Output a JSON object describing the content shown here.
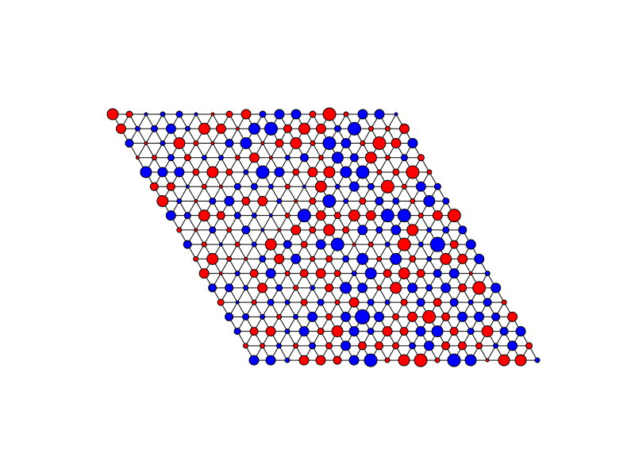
{
  "chart_data": {
    "type": "lattice",
    "colors": {
      "positive": "#ff0000",
      "negative": "#0000ff"
    },
    "values": [
      [
        7,
        4,
        -2,
        -3,
        -4,
        -2,
        2,
        4,
        6,
        -4,
        -6,
        -6,
        4,
        8,
        3,
        -6,
        -6,
        -2
      ],
      [
        6,
        -3,
        -4,
        -6,
        -3,
        7,
        6,
        2,
        -7,
        -8,
        5,
        7,
        6,
        -4,
        -8,
        3,
        3,
        6
      ],
      [
        -5,
        2,
        -3,
        7,
        3,
        2,
        -5,
        -7,
        2,
        5,
        7,
        3,
        -8,
        -6,
        3,
        8,
        6,
        -6
      ],
      [
        2,
        3,
        -4,
        4,
        -3,
        -3,
        3,
        6,
        2,
        -3,
        -5,
        3,
        -7,
        -5,
        7,
        3,
        -4,
        4
      ],
      [
        -7,
        -6,
        -6,
        4,
        7,
        4,
        -3,
        -8,
        -6,
        4,
        6,
        7,
        -7,
        -8,
        3,
        4,
        8,
        3
      ],
      [
        5,
        5,
        -2,
        3,
        2,
        -4,
        -4,
        -3,
        3,
        -2,
        7,
        -3,
        -6,
        -4,
        8,
        3,
        -6,
        -4
      ],
      [
        7,
        -3,
        2,
        -4,
        -6,
        5,
        6,
        -3,
        2,
        4,
        -8,
        -3,
        4,
        -5,
        -4,
        3,
        -7,
        -4
      ],
      [
        -6,
        -4,
        7,
        5,
        -4,
        -3,
        -2,
        3,
        -8,
        6,
        4,
        7,
        6,
        -8,
        -8,
        3,
        6,
        8
      ],
      [
        3,
        2,
        -4,
        3,
        -5,
        -2,
        2,
        6,
        4,
        7,
        4,
        -6,
        -4,
        -6,
        7,
        -3,
        -4,
        -5
      ],
      [
        -5,
        3,
        -2,
        3,
        -3,
        7,
        -5,
        4,
        -6,
        -8,
        2,
        3,
        -3,
        8,
        -3,
        -9,
        5,
        -6
      ],
      [
        3,
        7,
        3,
        2,
        -4,
        6,
        -6,
        3,
        4,
        -4,
        -7,
        3,
        -7,
        4,
        -3,
        7,
        6,
        -6
      ],
      [
        6,
        2,
        -3,
        5,
        -6,
        3,
        5,
        6,
        4,
        -3,
        -7,
        5,
        7,
        5,
        -5,
        -6,
        2,
        -3
      ],
      [
        -5,
        -5,
        -3,
        6,
        -4,
        3,
        -3,
        5,
        -7,
        -6,
        3,
        7,
        -6,
        -4,
        -6,
        5,
        8,
        -6
      ],
      [
        4,
        -2,
        3,
        -4,
        -3,
        4,
        -4,
        3,
        6,
        -4,
        -3,
        4,
        -5,
        5,
        -5,
        -3,
        -5,
        3
      ],
      [
        -5,
        -4,
        -3,
        3,
        -3,
        -6,
        4,
        -6,
        -9,
        -6,
        4,
        6,
        8,
        5,
        -6,
        -6,
        -5,
        6
      ],
      [
        -4,
        5,
        6,
        -3,
        -6,
        4,
        7,
        -6,
        -4,
        6,
        5,
        -6,
        -7,
        5,
        -4,
        7,
        -5,
        -6
      ],
      [
        3,
        3,
        -3,
        3,
        -4,
        4,
        -6,
        5,
        5,
        4,
        -4,
        -6,
        5,
        5,
        4,
        -3,
        -6,
        4
      ],
      [
        -6,
        -6,
        -3,
        6,
        6,
        5,
        -6,
        -8,
        3,
        7,
        8,
        3,
        -8,
        -7,
        2,
        7,
        7,
        -3
      ]
    ]
  }
}
